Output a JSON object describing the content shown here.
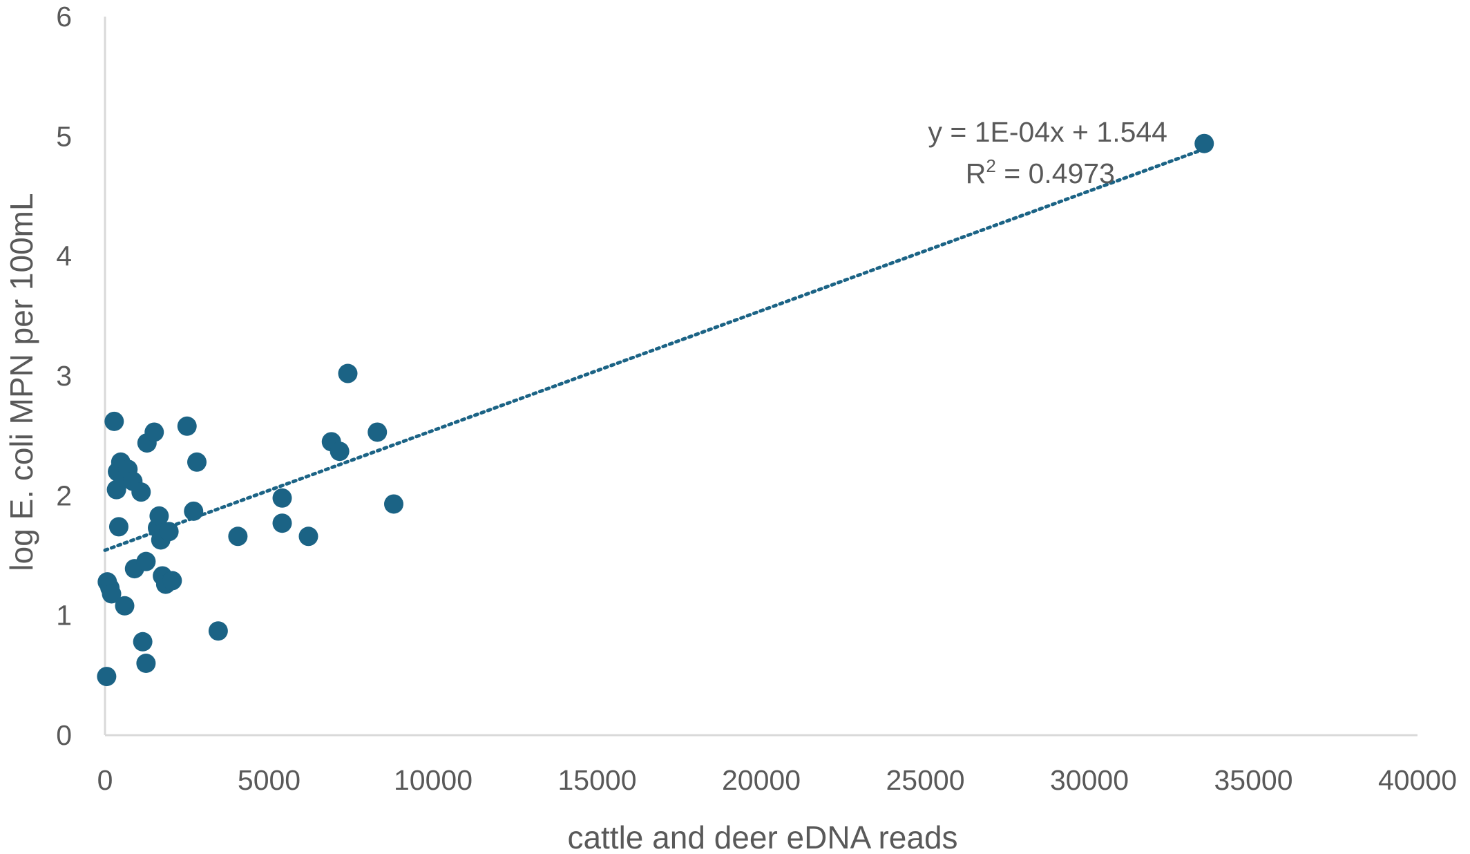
{
  "chart_data": {
    "type": "scatter",
    "xlabel": "cattle and deer eDNA reads",
    "ylabel": "log E. coli MPN per 100mL",
    "xlim": [
      0,
      40000
    ],
    "ylim": [
      0,
      6
    ],
    "x_ticks": [
      "0",
      "5000",
      "10000",
      "15000",
      "20000",
      "25000",
      "30000",
      "35000",
      "40000"
    ],
    "y_ticks": [
      "0",
      "1",
      "2",
      "3",
      "4",
      "5",
      "6"
    ],
    "grid": false,
    "color": "#1b6385",
    "series": [
      {
        "points": [
          [
            50,
            0.49
          ],
          [
            70,
            1.28
          ],
          [
            150,
            1.23
          ],
          [
            200,
            1.18
          ],
          [
            280,
            2.62
          ],
          [
            350,
            2.05
          ],
          [
            380,
            2.2
          ],
          [
            420,
            1.74
          ],
          [
            480,
            2.28
          ],
          [
            550,
            2.15
          ],
          [
            600,
            1.08
          ],
          [
            700,
            2.22
          ],
          [
            850,
            2.12
          ],
          [
            900,
            1.39
          ],
          [
            1100,
            2.03
          ],
          [
            1150,
            0.78
          ],
          [
            1250,
            0.6
          ],
          [
            1250,
            1.45
          ],
          [
            1280,
            2.44
          ],
          [
            1500,
            2.53
          ],
          [
            1600,
            1.73
          ],
          [
            1650,
            1.83
          ],
          [
            1700,
            1.63
          ],
          [
            1750,
            1.33
          ],
          [
            1800,
            1.69
          ],
          [
            1850,
            1.26
          ],
          [
            1950,
            1.7
          ],
          [
            2050,
            1.29
          ],
          [
            2500,
            2.58
          ],
          [
            2700,
            1.87
          ],
          [
            2800,
            2.28
          ],
          [
            3450,
            0.87
          ],
          [
            4050,
            1.66
          ],
          [
            5400,
            1.98
          ],
          [
            5400,
            1.77
          ],
          [
            6200,
            1.66
          ],
          [
            6900,
            2.45
          ],
          [
            7150,
            2.37
          ],
          [
            7400,
            3.02
          ],
          [
            8300,
            2.53
          ],
          [
            8800,
            1.93
          ],
          [
            33500,
            4.94
          ]
        ]
      }
    ],
    "trendline": {
      "type": "linear",
      "style": "dotted",
      "slope": 0.0001,
      "intercept": 1.544,
      "x_range": [
        0,
        33500
      ],
      "equation": "y = 1E-04x + 1.544",
      "r2_label": "R",
      "r2_sup": "2",
      "r2_value": " = 0.4973"
    }
  }
}
